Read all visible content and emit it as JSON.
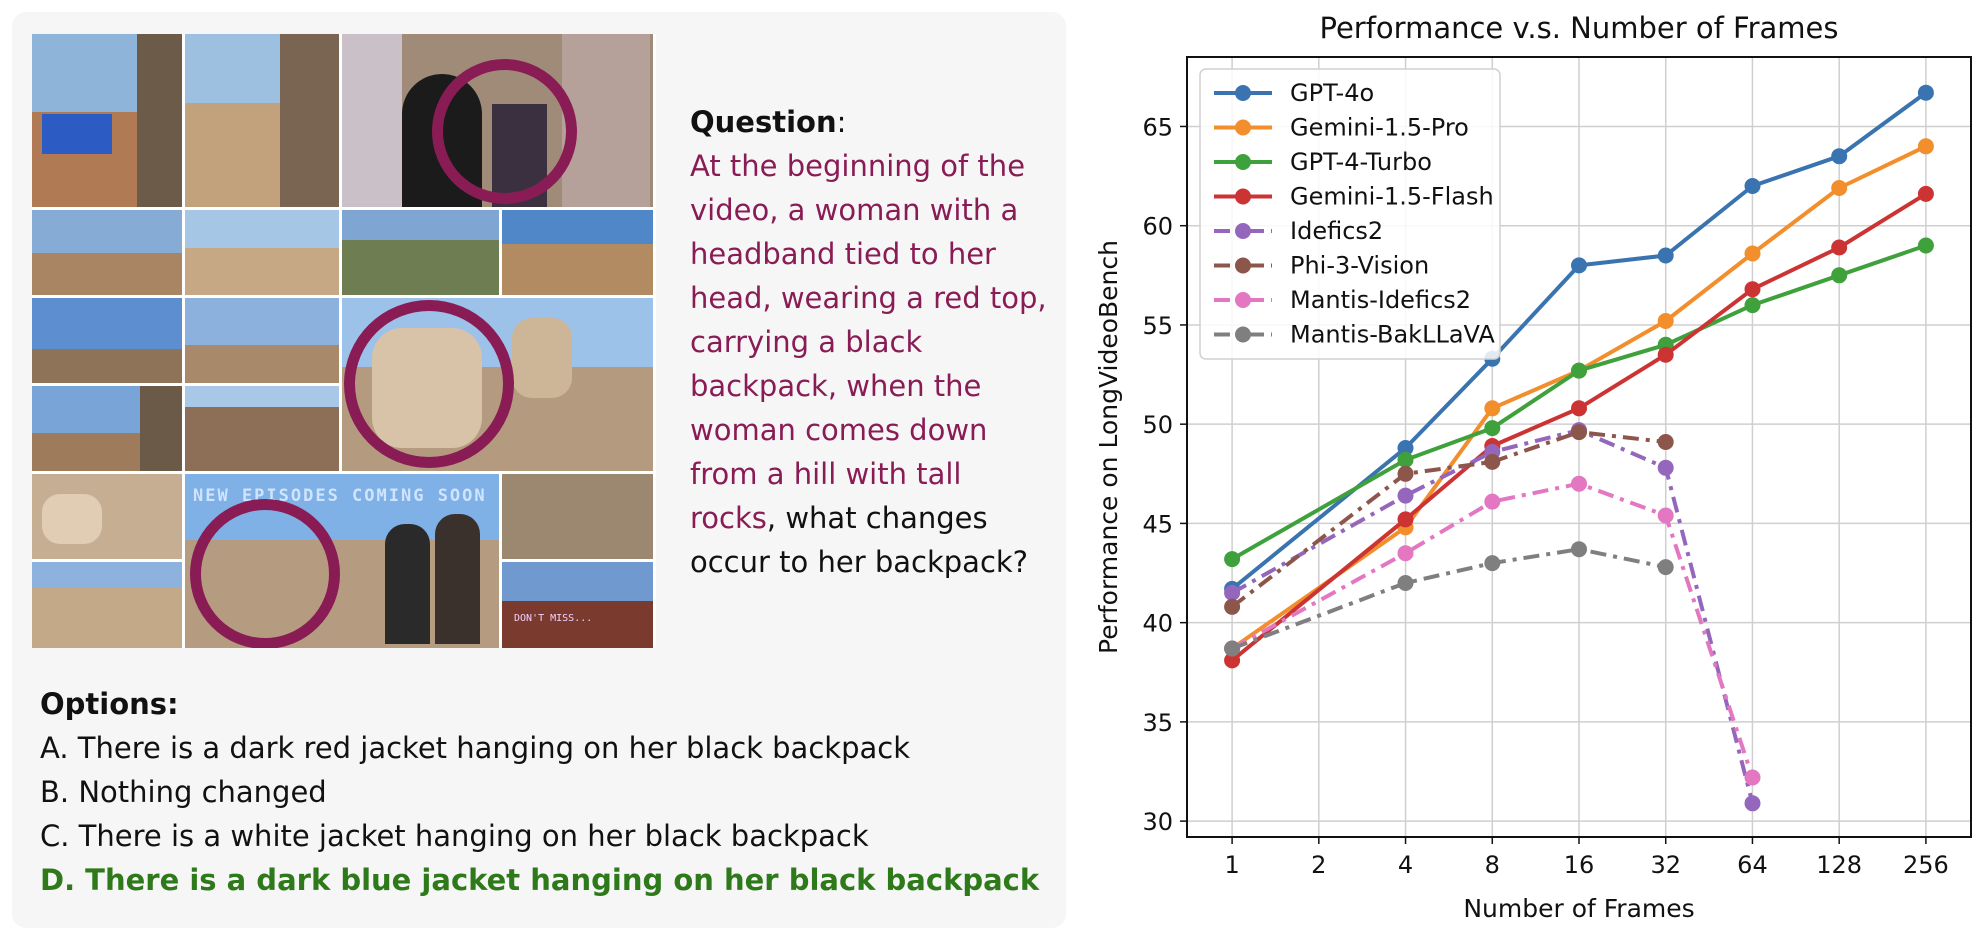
{
  "question": {
    "heading": "Question",
    "colon": ":",
    "text": "At the beginning of the video, a woman with a headband tied to her head, wearing a red top, carrying a black backpack, when the woman comes down from a hill with tall rocks",
    "tail": ", what changes occur to her backpack?"
  },
  "options": {
    "heading": "Options:",
    "items": [
      "A. There is a dark red jacket hanging on her black backpack",
      "B. Nothing changed",
      "C. There is a white jacket hanging on her black backpack",
      "D. There is a dark blue jacket hanging on her black backpack"
    ],
    "correct_index": 3
  },
  "collage": {
    "overlay_banner": "NEW EPISODES COMING SOON",
    "overlay_small": "DON'T MISS...",
    "colors": {
      "circle": "#8a1c55"
    }
  },
  "chart_data": {
    "type": "line",
    "title": "Performance v.s. Number of Frames",
    "xlabel": "Number of Frames",
    "ylabel": "Performance on LongVideoBench",
    "x": [
      "1",
      "2",
      "4",
      "8",
      "16",
      "32",
      "64",
      "128",
      "256"
    ],
    "yticks": [
      30,
      35,
      40,
      45,
      50,
      55,
      60,
      65
    ],
    "ylim": [
      29.2,
      68.5
    ],
    "grid": true,
    "legend_position": "top-left",
    "series": [
      {
        "name": "GPT-4o",
        "color": "#3a74b0",
        "dash": "solid",
        "points": [
          [
            1,
            41.7
          ],
          [
            4,
            48.8
          ],
          [
            8,
            53.3
          ],
          [
            16,
            58.0
          ],
          [
            32,
            58.5
          ],
          [
            64,
            62.0
          ],
          [
            128,
            63.5
          ],
          [
            256,
            66.7
          ]
        ]
      },
      {
        "name": "Gemini-1.5-Pro",
        "color": "#f28e2b",
        "dash": "solid",
        "points": [
          [
            1,
            38.7
          ],
          [
            4,
            44.8
          ],
          [
            8,
            50.8
          ],
          [
            16,
            52.7
          ],
          [
            32,
            55.2
          ],
          [
            64,
            58.6
          ],
          [
            128,
            61.9
          ],
          [
            256,
            64.0
          ]
        ]
      },
      {
        "name": "GPT-4-Turbo",
        "color": "#3fa13b",
        "dash": "solid",
        "points": [
          [
            1,
            43.2
          ],
          [
            4,
            48.2
          ],
          [
            8,
            49.8
          ],
          [
            16,
            52.7
          ],
          [
            32,
            54.0
          ],
          [
            64,
            56.0
          ],
          [
            128,
            57.5
          ],
          [
            256,
            59.0
          ]
        ]
      },
      {
        "name": "Gemini-1.5-Flash",
        "color": "#cc3333",
        "dash": "solid",
        "points": [
          [
            1,
            38.1
          ],
          [
            4,
            45.2
          ],
          [
            8,
            48.9
          ],
          [
            16,
            50.8
          ],
          [
            32,
            53.5
          ],
          [
            64,
            56.8
          ],
          [
            128,
            58.9
          ],
          [
            256,
            61.6
          ]
        ]
      },
      {
        "name": "Idefics2",
        "color": "#9467bd",
        "dash": "dashdot",
        "points": [
          [
            1,
            41.5
          ],
          [
            4,
            46.4
          ],
          [
            8,
            48.6
          ],
          [
            16,
            49.7
          ],
          [
            32,
            47.8
          ],
          [
            64,
            30.9
          ]
        ]
      },
      {
        "name": "Phi-3-Vision",
        "color": "#8c564b",
        "dash": "dashdot",
        "points": [
          [
            1,
            40.8
          ],
          [
            4,
            47.5
          ],
          [
            8,
            48.1
          ],
          [
            16,
            49.6
          ],
          [
            32,
            49.1
          ]
        ]
      },
      {
        "name": "Mantis-Idefics2",
        "color": "#e377c2",
        "dash": "dashdot",
        "points": [
          [
            1,
            38.7
          ],
          [
            4,
            43.5
          ],
          [
            8,
            46.1
          ],
          [
            16,
            47.0
          ],
          [
            32,
            45.4
          ],
          [
            64,
            32.2
          ]
        ]
      },
      {
        "name": "Mantis-BakLLaVA",
        "color": "#7f7f7f",
        "dash": "dashdot",
        "points": [
          [
            1,
            38.7
          ],
          [
            4,
            42.0
          ],
          [
            8,
            43.0
          ],
          [
            16,
            43.7
          ],
          [
            32,
            42.8
          ]
        ]
      }
    ]
  }
}
